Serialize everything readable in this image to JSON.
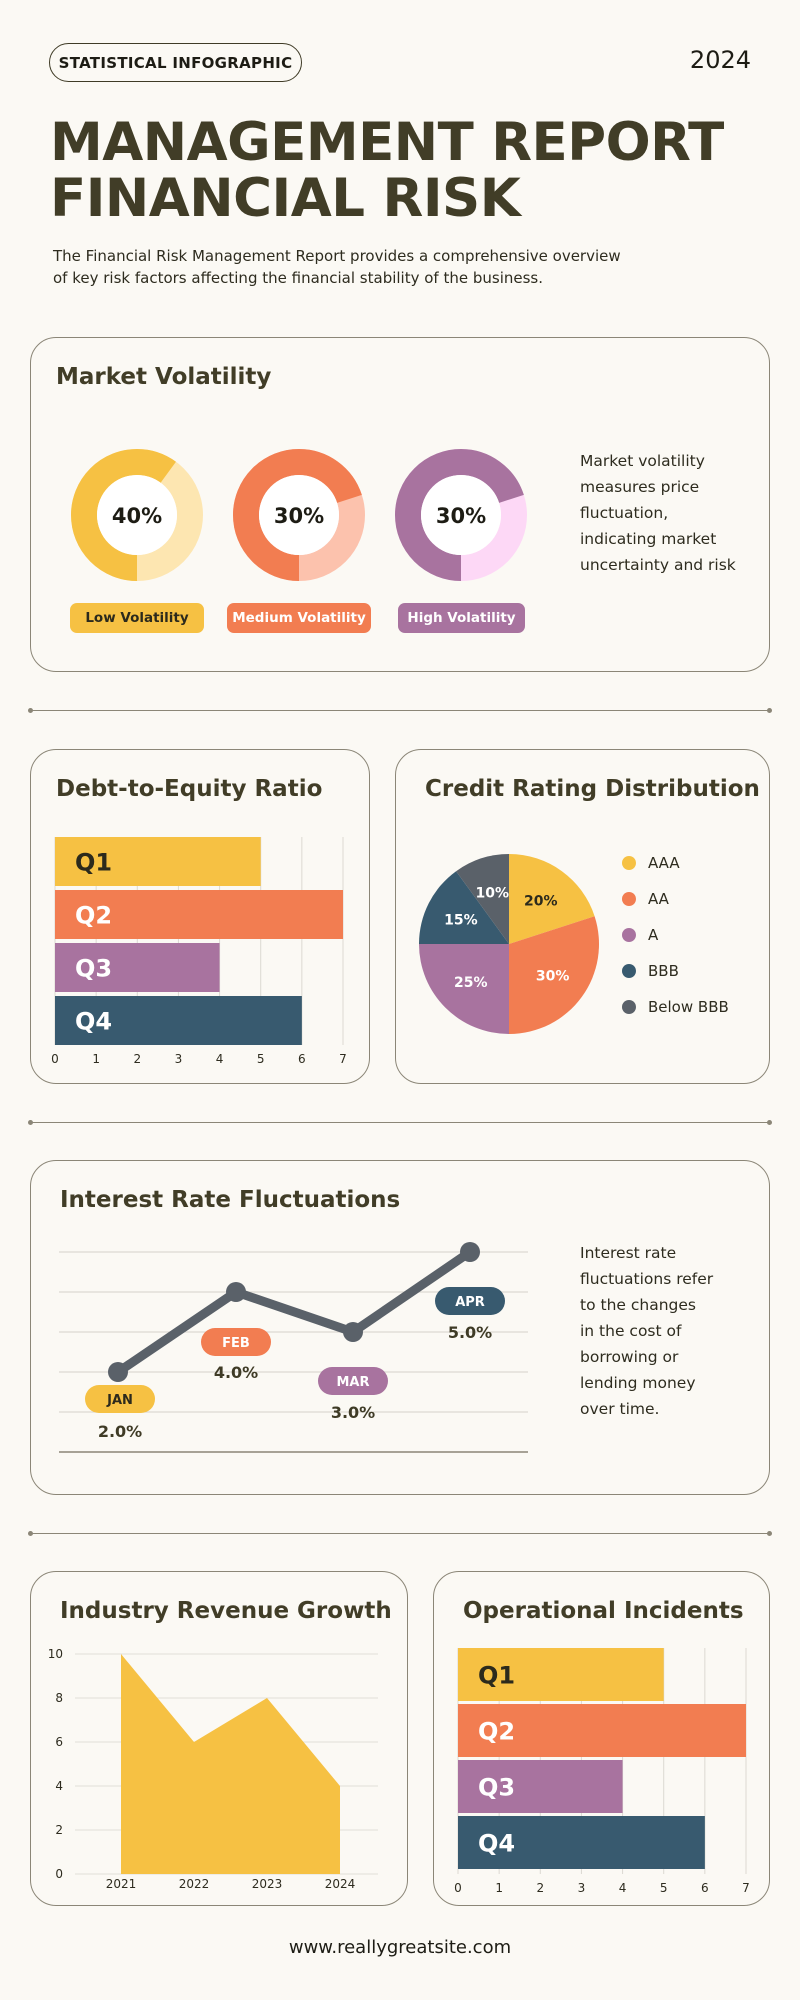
{
  "header": {
    "badge": "STATISTICAL INFOGRAPHIC",
    "year": "2024",
    "title_line1": "MANAGEMENT REPORT",
    "title_line2": "FINANCIAL RISK",
    "intro": "The Financial Risk Management Report provides a comprehensive overview of key risk factors affecting the financial stability of the business."
  },
  "colors": {
    "yellow": "#f6c143",
    "orange": "#f27d51",
    "purple": "#a8739f",
    "navy": "#385a6f",
    "slate": "#5a6169"
  },
  "market_volatility": {
    "title": "Market Volatility",
    "description": "Market volatility measures price fluctuation, indicating market uncertainty and risk",
    "donuts": [
      {
        "value": 40,
        "label": "40%",
        "tag": "Low Volatility",
        "color": "#f6c143",
        "track": "#fde6b1"
      },
      {
        "value": 30,
        "label": "30%",
        "tag": "Medium Volatility",
        "color": "#f27d51",
        "track": "#fcc2ad"
      },
      {
        "value": 30,
        "label": "30%",
        "tag": "High Volatility",
        "color": "#a8739f",
        "track": "#fdd8f6"
      }
    ]
  },
  "debt_equity": {
    "title": "Debt-to-Equity Ratio"
  },
  "credit_rating": {
    "title": "Credit Rating Distribution"
  },
  "interest_rate": {
    "title": "Interest Rate Fluctuations",
    "description": "Interest rate fluctuations refer to the changes in the cost of borrowing or lending money over time."
  },
  "revenue_growth": {
    "title": "Industry Revenue Growth"
  },
  "operational_incidents": {
    "title": "Operational Incidents"
  },
  "footer": {
    "url": "www.reallygreatsite.com"
  },
  "chart_data": [
    {
      "id": "debt_equity",
      "type": "bar",
      "orientation": "horizontal",
      "categories": [
        "Q1",
        "Q2",
        "Q3",
        "Q4"
      ],
      "values": [
        5,
        7,
        4,
        6
      ],
      "colors": [
        "#f6c143",
        "#f27d51",
        "#a8739f",
        "#385a6f"
      ],
      "xlim": [
        0,
        7
      ],
      "xticks": [
        "0",
        "1",
        "2",
        "3",
        "4",
        "5",
        "6",
        "7"
      ],
      "grid": true
    },
    {
      "id": "credit_rating",
      "type": "pie",
      "categories": [
        "AAA",
        "AA",
        "A",
        "BBB",
        "Below BBB"
      ],
      "values": [
        20,
        30,
        25,
        15,
        10
      ],
      "labels": [
        "20%",
        "30%",
        "25%",
        "15%",
        "10%"
      ],
      "colors": [
        "#f6c143",
        "#f27d51",
        "#a8739f",
        "#385a6f",
        "#5a6169"
      ],
      "legend": "right"
    },
    {
      "id": "interest_rate",
      "type": "line",
      "categories": [
        "JAN",
        "FEB",
        "MAR",
        "APR"
      ],
      "values": [
        2.0,
        4.0,
        3.0,
        5.0
      ],
      "labels": [
        "2.0%",
        "4.0%",
        "3.0%",
        "5.0%"
      ],
      "tag_colors": [
        "#f6c143",
        "#f27d51",
        "#a8739f",
        "#385a6f"
      ],
      "line_color": "#5a6169",
      "grid": true
    },
    {
      "id": "revenue_growth",
      "type": "area",
      "categories": [
        "2021",
        "2022",
        "2023",
        "2024"
      ],
      "values": [
        10,
        6,
        8,
        4
      ],
      "ylim": [
        0,
        10
      ],
      "yticks": [
        "0",
        "2",
        "4",
        "6",
        "8",
        "10"
      ],
      "color": "#f6c143",
      "grid": true
    },
    {
      "id": "operational_incidents",
      "type": "bar",
      "orientation": "horizontal",
      "categories": [
        "Q1",
        "Q2",
        "Q3",
        "Q4"
      ],
      "values": [
        5,
        7,
        4,
        6
      ],
      "colors": [
        "#f6c143",
        "#f27d51",
        "#a8739f",
        "#385a6f"
      ],
      "xlim": [
        0,
        7
      ],
      "xticks": [
        "0",
        "1",
        "2",
        "3",
        "4",
        "5",
        "6",
        "7"
      ],
      "grid": true
    }
  ]
}
